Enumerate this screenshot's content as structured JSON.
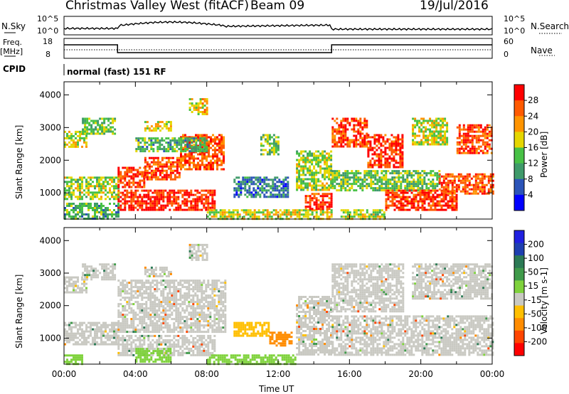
{
  "header": {
    "station": "Christmas Valley West (fitACF)",
    "beam": "Beam 09",
    "date": "19/Jul/2016"
  },
  "panels": {
    "nsky": {
      "label": "N.Sky",
      "tick_top": "10^5",
      "tick_bottom": "10^0",
      "right_label": "N.Search",
      "right_tick_top": "10^5",
      "right_tick_bottom": "10^0"
    },
    "freq": {
      "label_line1": "Freq.",
      "label_line2": "[MHz]",
      "tick_top": "18",
      "tick_bottom": "8",
      "right_label": "Nave",
      "right_tick_top": "60",
      "right_tick_bottom": "0"
    },
    "cpid": {
      "label": "CPID",
      "value": "normal (fast) 151 RF"
    }
  },
  "colors": {
    "power": [
      "#0000ff",
      "#2b54b8",
      "#3f9a6a",
      "#48c146",
      "#e5d600",
      "#ff9400",
      "#ff5a00",
      "#ff0000"
    ],
    "velocity": [
      "#ff0000",
      "#ff4500",
      "#ff8c00",
      "#ffbf00",
      "#c9c9c2",
      "#7fd23c",
      "#3f9a4a",
      "#2c7a55",
      "#1e3fb0",
      "#2020e0"
    ],
    "ground_scatter": "#c9c9c2"
  },
  "chart_data": [
    {
      "type": "heatmap",
      "name": "power",
      "ylabel": "Slant Range [km]",
      "yticks": [
        "4000",
        "3000",
        "2000",
        "1000"
      ],
      "ylim": [
        200,
        4400
      ],
      "xlim": [
        0,
        24
      ],
      "colorbar_label": "Power [dB]",
      "colorbar_ticks": [
        "28",
        "24",
        "20",
        "16",
        "12",
        "8",
        "4"
      ],
      "colorbar_range": [
        0,
        32
      ],
      "regions": [
        {
          "t0": 0.0,
          "t1": 1.2,
          "r0": 2400,
          "r1": 2900,
          "v": 18
        },
        {
          "t0": 1.0,
          "t1": 2.8,
          "r0": 2800,
          "r1": 3300,
          "v": 14
        },
        {
          "t0": 0.0,
          "t1": 3.0,
          "r0": 800,
          "r1": 1500,
          "v": 16
        },
        {
          "t0": 0.0,
          "t1": 3.0,
          "r0": 200,
          "r1": 700,
          "v": 12
        },
        {
          "t0": 3.0,
          "t1": 4.5,
          "r0": 1200,
          "r1": 1800,
          "v": 28
        },
        {
          "t0": 4.5,
          "t1": 6.5,
          "r0": 1400,
          "r1": 2100,
          "v": 27
        },
        {
          "t0": 6.5,
          "t1": 9.0,
          "r0": 1700,
          "r1": 2800,
          "v": 26
        },
        {
          "t0": 3.0,
          "t1": 8.5,
          "r0": 500,
          "r1": 1100,
          "v": 29
        },
        {
          "t0": 4.0,
          "t1": 8.0,
          "r0": 2300,
          "r1": 2700,
          "v": 12
        },
        {
          "t0": 4.5,
          "t1": 6.0,
          "r0": 2900,
          "r1": 3200,
          "v": 18
        },
        {
          "t0": 7.0,
          "t1": 8.0,
          "r0": 3400,
          "r1": 3900,
          "v": 20
        },
        {
          "t0": 9.5,
          "t1": 12.5,
          "r0": 900,
          "r1": 1500,
          "v": 8
        },
        {
          "t0": 8.0,
          "t1": 15.0,
          "r0": 200,
          "r1": 500,
          "v": 18
        },
        {
          "t0": 11.0,
          "t1": 12.0,
          "r0": 2200,
          "r1": 2800,
          "v": 14
        },
        {
          "t0": 13.0,
          "t1": 15.0,
          "r0": 1100,
          "r1": 2300,
          "v": 16
        },
        {
          "t0": 13.5,
          "t1": 15.0,
          "r0": 500,
          "r1": 1000,
          "v": 28
        },
        {
          "t0": 15.0,
          "t1": 17.0,
          "r0": 2400,
          "r1": 3300,
          "v": 27
        },
        {
          "t0": 17.0,
          "t1": 19.0,
          "r0": 1800,
          "r1": 2800,
          "v": 28
        },
        {
          "t0": 15.0,
          "t1": 21.0,
          "r0": 1100,
          "r1": 1700,
          "v": 14
        },
        {
          "t0": 15.5,
          "t1": 18.0,
          "r0": 200,
          "r1": 500,
          "v": 16
        },
        {
          "t0": 18.0,
          "t1": 22.0,
          "r0": 500,
          "r1": 1100,
          "v": 28
        },
        {
          "t0": 21.0,
          "t1": 24.0,
          "r0": 1000,
          "r1": 1600,
          "v": 26
        },
        {
          "t0": 19.5,
          "t1": 21.5,
          "r0": 2500,
          "r1": 3300,
          "v": 18
        },
        {
          "t0": 22.0,
          "t1": 24.0,
          "r0": 2200,
          "r1": 3100,
          "v": 27
        }
      ]
    },
    {
      "type": "heatmap",
      "name": "velocity",
      "ylabel": "Slant Range [km]",
      "yticks": [
        "4000",
        "3000",
        "2000",
        "1000"
      ],
      "ylim": [
        200,
        4400
      ],
      "xlim": [
        0,
        24
      ],
      "colorbar_label": "Velocity [m s-1]",
      "colorbar_ticks": [
        "200",
        "100",
        "50",
        "15",
        "-15",
        "-50",
        "-100",
        "-200"
      ],
      "colorbar_range": [
        -250,
        250
      ],
      "regions": [
        {
          "t0": 0.0,
          "t1": 1.2,
          "r0": 2400,
          "r1": 2900,
          "v": 0
        },
        {
          "t0": 1.0,
          "t1": 2.8,
          "r0": 2800,
          "r1": 3300,
          "v": 0
        },
        {
          "t0": 0.0,
          "t1": 3.0,
          "r0": 800,
          "r1": 1500,
          "v": 0
        },
        {
          "t0": 3.0,
          "t1": 9.0,
          "r0": 1200,
          "r1": 2800,
          "v": 0
        },
        {
          "t0": 3.0,
          "t1": 8.5,
          "r0": 500,
          "r1": 1100,
          "v": 0
        },
        {
          "t0": 4.5,
          "t1": 6.0,
          "r0": 2900,
          "r1": 3200,
          "v": 0
        },
        {
          "t0": 7.0,
          "t1": 8.0,
          "r0": 3400,
          "r1": 3900,
          "v": 0
        },
        {
          "t0": 0.0,
          "t1": 1.0,
          "r0": 200,
          "r1": 500,
          "v": 30
        },
        {
          "t0": 4.0,
          "t1": 6.0,
          "r0": 300,
          "r1": 700,
          "v": 35
        },
        {
          "t0": 8.0,
          "t1": 13.0,
          "r0": 200,
          "r1": 500,
          "v": 30
        },
        {
          "t0": 9.5,
          "t1": 11.5,
          "r0": 1100,
          "r1": 1500,
          "v": -40
        },
        {
          "t0": 11.5,
          "t1": 12.8,
          "r0": 800,
          "r1": 1200,
          "v": -60
        },
        {
          "t0": 13.0,
          "t1": 15.0,
          "r0": 500,
          "r1": 2300,
          "v": 0
        },
        {
          "t0": 15.0,
          "t1": 24.0,
          "r0": 500,
          "r1": 1700,
          "v": 0
        },
        {
          "t0": 15.0,
          "t1": 19.0,
          "r0": 1800,
          "r1": 3300,
          "v": 0
        },
        {
          "t0": 19.5,
          "t1": 24.0,
          "r0": 2200,
          "r1": 3300,
          "v": 0
        }
      ]
    }
  ],
  "xaxis": {
    "ticks": [
      "00:00",
      "04:00",
      "08:00",
      "12:00",
      "16:00",
      "20:00",
      "00:00"
    ],
    "label": "Time UT"
  }
}
